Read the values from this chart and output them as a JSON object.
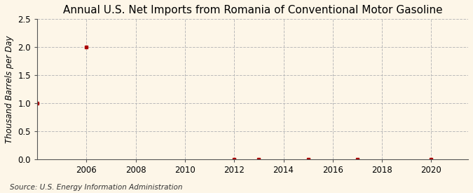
{
  "title": "Annual U.S. Net Imports from Romania of Conventional Motor Gasoline",
  "ylabel": "Thousand Barrels per Day",
  "source": "Source: U.S. Energy Information Administration",
  "background_color": "#fdf6e8",
  "plot_background_color": "#fdf6e8",
  "xlim": [
    2004.0,
    2021.5
  ],
  "ylim": [
    0,
    2.5
  ],
  "yticks": [
    0.0,
    0.5,
    1.0,
    1.5,
    2.0,
    2.5
  ],
  "xticks": [
    2006,
    2008,
    2010,
    2012,
    2014,
    2016,
    2018,
    2020
  ],
  "data_x": [
    2004,
    2006,
    2012,
    2013,
    2015,
    2017,
    2020
  ],
  "data_y": [
    1.0,
    2.0,
    0.0,
    0.0,
    0.0,
    0.0,
    0.0
  ],
  "marker_color": "#aa0000",
  "marker_size": 3.5,
  "grid_color": "#bbbbbb",
  "title_fontsize": 11,
  "label_fontsize": 8.5,
  "tick_fontsize": 8.5,
  "source_fontsize": 7.5
}
